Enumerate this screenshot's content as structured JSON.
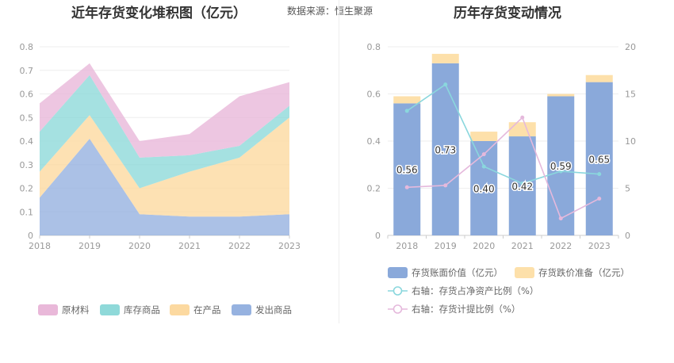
{
  "header": {
    "left_title": "近年存货变化堆积图（亿元）",
    "source": "数据来源：恒生聚源",
    "right_title": "历年存货变动情况"
  },
  "colors": {
    "raw": "#e9b8d9",
    "stock": "#8fd9d9",
    "wip": "#fcd9a0",
    "shipped": "#96b2e0",
    "bar_book": "#8aa9da",
    "bar_provision": "#fde0aa",
    "line_ratio": "#8ad7dd",
    "line_provision": "#e5b9dc"
  },
  "chart_data": [
    {
      "type": "area",
      "stacked": true,
      "x": [
        "2018",
        "2019",
        "2020",
        "2021",
        "2022",
        "2023"
      ],
      "series": [
        {
          "name": "发出商品",
          "values": [
            0.16,
            0.41,
            0.09,
            0.08,
            0.08,
            0.09
          ],
          "color": "#96b2e0"
        },
        {
          "name": "在产品",
          "values": [
            0.11,
            0.1,
            0.11,
            0.19,
            0.25,
            0.41
          ],
          "color": "#fcd9a0"
        },
        {
          "name": "库存商品",
          "values": [
            0.17,
            0.17,
            0.13,
            0.07,
            0.05,
            0.05
          ],
          "color": "#8fd9d9"
        },
        {
          "name": "原材料",
          "values": [
            0.12,
            0.05,
            0.07,
            0.09,
            0.21,
            0.1
          ],
          "color": "#e9b8d9"
        }
      ],
      "ylim": [
        0,
        0.8
      ],
      "yticks": [
        "0",
        "0.1",
        "0.2",
        "0.3",
        "0.4",
        "0.5",
        "0.6",
        "0.7",
        "0.8"
      ],
      "grid": true,
      "legend": "bottom",
      "legend_order": [
        "原材料",
        "库存商品",
        "在产品",
        "发出商品"
      ]
    },
    {
      "type": "bar",
      "stacked": true,
      "categories": [
        "2018",
        "2019",
        "2020",
        "2021",
        "2022",
        "2023"
      ],
      "series": [
        {
          "name": "存货账面价值（亿元）",
          "values": [
            0.56,
            0.73,
            0.4,
            0.42,
            0.59,
            0.65
          ],
          "labels": [
            "0.56",
            "0.73",
            "0.40",
            "0.42",
            "0.59",
            "0.65"
          ]
        },
        {
          "name": "存货跌价准备（亿元）",
          "values": [
            0.03,
            0.04,
            0.04,
            0.06,
            0.01,
            0.03
          ]
        }
      ],
      "lines": [
        {
          "name": "右轴：存货占净资产比例（%）",
          "axis": "right",
          "values": [
            13.2,
            16.0,
            7.3,
            5.5,
            6.8,
            6.5
          ]
        },
        {
          "name": "右轴：存货计提比例（%）",
          "axis": "right",
          "values": [
            5.1,
            5.3,
            8.6,
            12.5,
            1.8,
            3.9
          ]
        }
      ],
      "ylim": [
        0,
        0.8
      ],
      "yticks": [
        "0",
        "0.2",
        "0.4",
        "0.6",
        "0.8"
      ],
      "y2lim": [
        0,
        20
      ],
      "y2ticks": [
        "0",
        "5",
        "10",
        "15",
        "20"
      ],
      "grid": true,
      "legend": "bottom"
    }
  ]
}
